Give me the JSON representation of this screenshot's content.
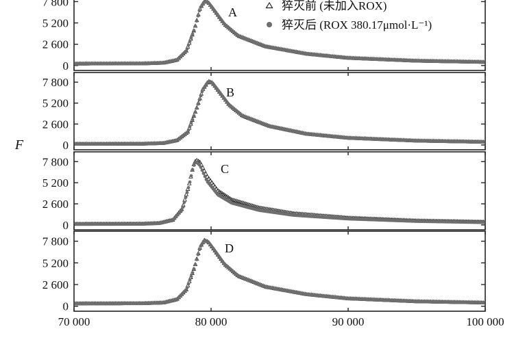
{
  "chart_data": {
    "type": "scatter",
    "ylabel": "F",
    "xlabel": "",
    "xlim": [
      70000,
      100000
    ],
    "ylim": [
      -600,
      9000
    ],
    "x_ticks": [
      {
        "value": 70000,
        "label": "70 000"
      },
      {
        "value": 80000,
        "label": "80 000"
      },
      {
        "value": 90000,
        "label": "90 000"
      },
      {
        "value": 100000,
        "label": "100 000"
      }
    ],
    "y_ticks": [
      {
        "value": 0,
        "label": "0"
      },
      {
        "value": 2600,
        "label": "2 600"
      },
      {
        "value": 5200,
        "label": "5 200"
      },
      {
        "value": 7800,
        "label": "7 800"
      }
    ],
    "legend": {
      "placement": "top-right",
      "entries": [
        {
          "marker": "triangle",
          "text": "猝灭前 (未加入ROX)"
        },
        {
          "marker": "circle",
          "text": "猝灭后 (ROX 380.17μmol·L⁻¹)"
        }
      ]
    },
    "colors": {
      "before": "#222222",
      "after": "#6e6e6e"
    },
    "panels": [
      {
        "label": "A",
        "series": [
          {
            "name": "猝灭前 (未加入ROX)",
            "marker": "triangle",
            "x": [
              70000,
              75000,
              76500,
              77500,
              78200,
              78800,
              79200,
              79500,
              79800,
              80300,
              81000,
              82000,
              84000,
              87000,
              90000,
              95000,
              100000
            ],
            "y": [
              200,
              220,
              300,
              650,
              1800,
              4500,
              7000,
              7800,
              7700,
              6600,
              5000,
              3600,
              2300,
              1400,
              900,
              550,
              400
            ]
          },
          {
            "name": "猝灭后 (ROX 380.17μmol·L⁻¹)",
            "marker": "circle",
            "x": [
              70000,
              75000,
              76500,
              77500,
              78200,
              78800,
              79200,
              79500,
              79800,
              80300,
              81000,
              82000,
              84000,
              87000,
              90000,
              95000,
              100000
            ],
            "y": [
              200,
              220,
              300,
              650,
              1800,
              4500,
              7000,
              7800,
              7700,
              6600,
              5000,
              3600,
              2300,
              1400,
              900,
              550,
              400
            ]
          }
        ]
      },
      {
        "label": "B",
        "series": [
          {
            "name": "猝灭前 (未加入ROX)",
            "marker": "triangle",
            "x": [
              70000,
              75000,
              76500,
              77500,
              78300,
              78900,
              79400,
              79800,
              80100,
              80600,
              81300,
              82300,
              84300,
              87000,
              90000,
              95000,
              100000
            ],
            "y": [
              100,
              120,
              200,
              550,
              1600,
              4300,
              6900,
              7900,
              7700,
              6600,
              5000,
              3600,
              2300,
              1350,
              850,
              500,
              350
            ]
          },
          {
            "name": "猝灭后 (ROX 380.17μmol·L⁻¹)",
            "marker": "circle",
            "x": [
              70000,
              75000,
              76500,
              77500,
              78300,
              78900,
              79400,
              79800,
              80100,
              80600,
              81300,
              82300,
              84300,
              87000,
              90000,
              95000,
              100000
            ],
            "y": [
              100,
              120,
              200,
              550,
              1600,
              4300,
              6900,
              7900,
              7700,
              6600,
              5000,
              3600,
              2300,
              1350,
              850,
              500,
              350
            ]
          }
        ]
      },
      {
        "label": "C",
        "series": [
          {
            "name": "猝灭前 (未加入ROX)",
            "marker": "triangle",
            "x": [
              70000,
              75000,
              76200,
              77200,
              77900,
              78400,
              78700,
              78900,
              79200,
              79700,
              80500,
              81500,
              83500,
              86000,
              90000,
              95000,
              100000
            ],
            "y": [
              100,
              120,
              200,
              600,
              2000,
              5000,
              7300,
              8000,
              7700,
              6000,
              4200,
              3100,
              2100,
              1400,
              850,
              500,
              350
            ]
          },
          {
            "name": "猝灭后 (ROX 380.17μmol·L⁻¹)",
            "marker": "circle",
            "x": [
              70000,
              75000,
              76200,
              77200,
              77900,
              78400,
              78700,
              78900,
              79200,
              79700,
              80500,
              81500,
              83500,
              86000,
              90000,
              95000,
              100000
            ],
            "y": [
              80,
              100,
              180,
              550,
              1900,
              4900,
              7200,
              7800,
              7300,
              5400,
              3700,
              2700,
              1800,
              1200,
              750,
              450,
              300
            ]
          }
        ]
      },
      {
        "label": "D",
        "series": [
          {
            "name": "猝灭前 (未加入ROX)",
            "marker": "triangle",
            "x": [
              70000,
              75000,
              76500,
              77500,
              78200,
              78800,
              79200,
              79500,
              79800,
              80300,
              81000,
              82000,
              84000,
              87000,
              90000,
              95000,
              100000
            ],
            "y": [
              300,
              320,
              400,
              800,
              2000,
              4700,
              7100,
              7900,
              7700,
              6600,
              5000,
              3600,
              2300,
              1400,
              900,
              550,
              400
            ]
          },
          {
            "name": "猝灭后 (ROX 380.17μmol·L⁻¹)",
            "marker": "circle",
            "x": [
              70000,
              75000,
              76500,
              77500,
              78200,
              78800,
              79200,
              79500,
              79800,
              80300,
              81000,
              82000,
              84000,
              87000,
              90000,
              95000,
              100000
            ],
            "y": [
              300,
              320,
              400,
              800,
              2000,
              4700,
              7100,
              7900,
              7700,
              6600,
              5000,
              3600,
              2300,
              1400,
              900,
              550,
              400
            ]
          }
        ]
      }
    ]
  }
}
